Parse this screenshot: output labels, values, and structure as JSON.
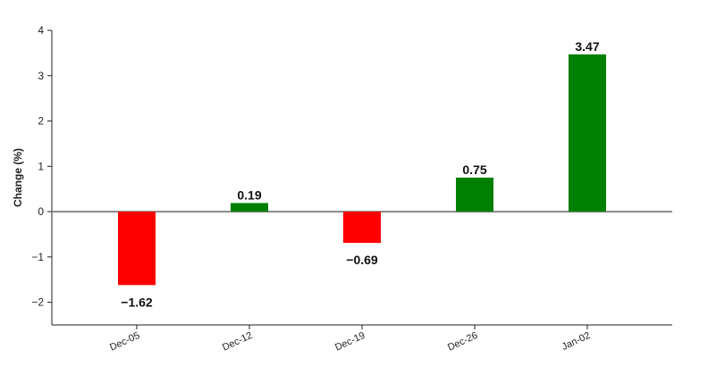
{
  "chart_data": {
    "type": "bar",
    "y_label": "Change (%)",
    "categories": [
      "Dec-05",
      "Dec-12",
      "Dec-19",
      "Dec-26",
      "Jan-02"
    ],
    "values": [
      -1.62,
      0.19,
      -0.69,
      0.75,
      3.47
    ],
    "value_labels": [
      "−1.62",
      "0.19",
      "−0.69",
      "0.75",
      "3.47"
    ],
    "colors": [
      "#ff0000",
      "#008000",
      "#ff0000",
      "#008000",
      "#008000"
    ],
    "ylim": [
      -2.5,
      4
    ],
    "yticks": [
      {
        "value": -2,
        "label": "−2"
      },
      {
        "value": -1,
        "label": "−1"
      },
      0,
      1,
      2,
      3,
      4
    ]
  }
}
